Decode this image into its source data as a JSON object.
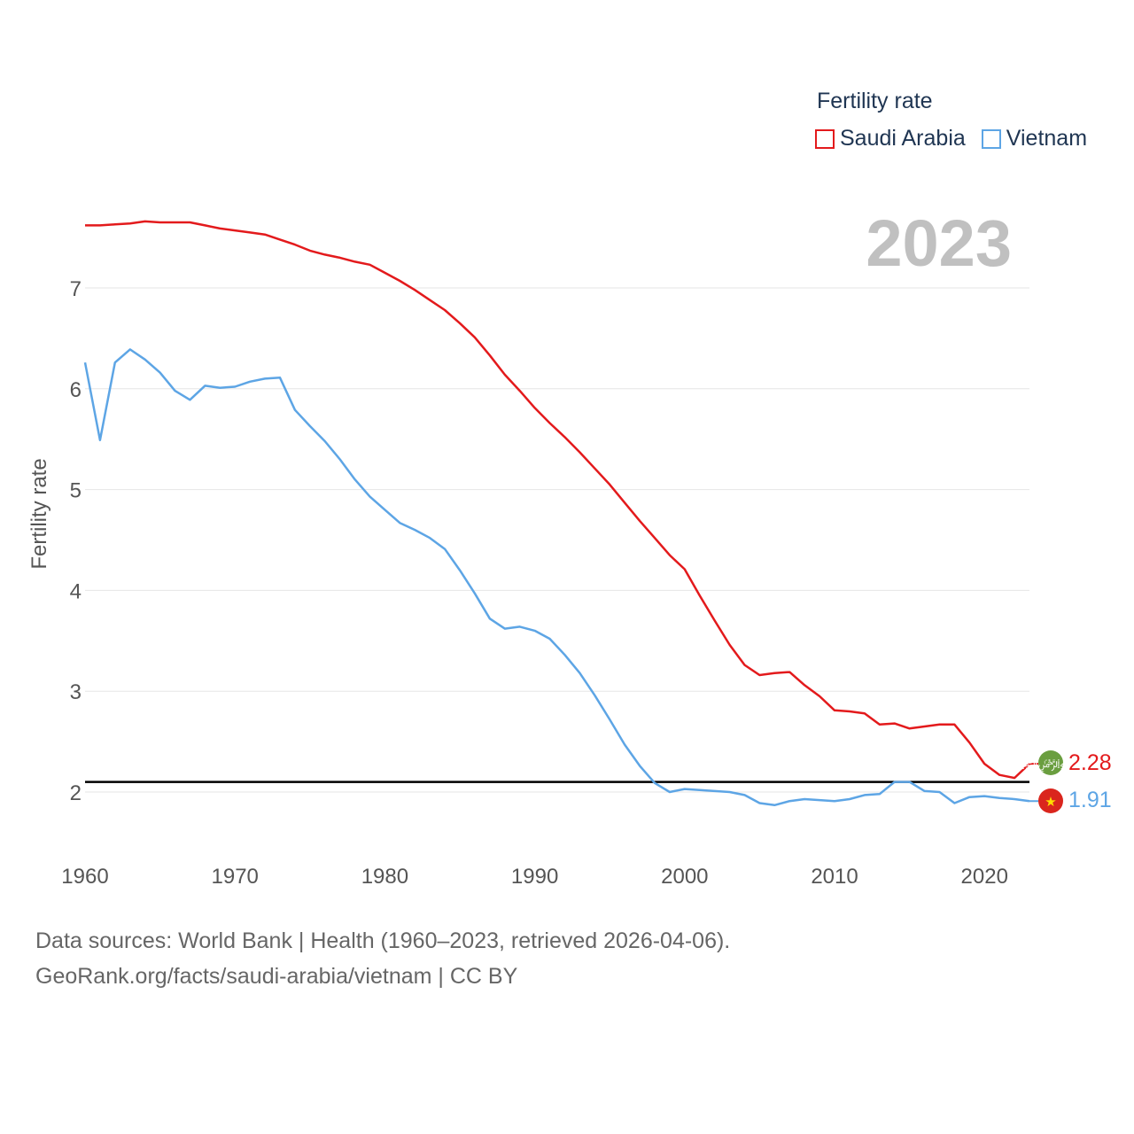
{
  "legend": {
    "title": "Fertility rate",
    "items": [
      {
        "label": "Saudi Arabia",
        "color": "#e31a1c"
      },
      {
        "label": "Vietnam",
        "color": "#5da5e5"
      }
    ]
  },
  "year_label": "2023",
  "footer": {
    "line1": "Data sources: World Bank | Health (1960–2023, retrieved 2026-04-06).",
    "line2": "GeoRank.org/facts/saudi-arabia/vietnam | CC BY"
  },
  "end_labels": {
    "saudi": "2.28",
    "vietnam": "1.91"
  },
  "icons": {
    "saudi": "saudi-arabia-flag-icon",
    "vietnam": "vietnam-flag-icon"
  },
  "chart_data": {
    "type": "line",
    "title": "",
    "xlabel": "",
    "ylabel": "Fertility rate",
    "xlim": [
      1960,
      2023
    ],
    "ylim": [
      1.4,
      7.9
    ],
    "xticks": [
      1960,
      1970,
      1980,
      1990,
      2000,
      2010,
      2020
    ],
    "yticks": [
      2,
      3,
      4,
      5,
      6,
      7
    ],
    "reference_line": 2.1,
    "x": [
      1960,
      1961,
      1962,
      1963,
      1964,
      1965,
      1966,
      1967,
      1968,
      1969,
      1970,
      1971,
      1972,
      1973,
      1974,
      1975,
      1976,
      1977,
      1978,
      1979,
      1980,
      1981,
      1982,
      1983,
      1984,
      1985,
      1986,
      1987,
      1988,
      1989,
      1990,
      1991,
      1992,
      1993,
      1994,
      1995,
      1996,
      1997,
      1998,
      1999,
      2000,
      2001,
      2002,
      2003,
      2004,
      2005,
      2006,
      2007,
      2008,
      2009,
      2010,
      2011,
      2012,
      2013,
      2014,
      2015,
      2016,
      2017,
      2018,
      2019,
      2020,
      2021,
      2022,
      2023
    ],
    "series": [
      {
        "name": "Saudi Arabia",
        "color": "#e31a1c",
        "values": [
          7.62,
          7.62,
          7.63,
          7.64,
          7.66,
          7.65,
          7.65,
          7.65,
          7.62,
          7.59,
          7.57,
          7.55,
          7.53,
          7.48,
          7.43,
          7.37,
          7.33,
          7.3,
          7.26,
          7.23,
          7.15,
          7.07,
          6.98,
          6.88,
          6.78,
          6.65,
          6.51,
          6.33,
          6.14,
          5.98,
          5.81,
          5.66,
          5.52,
          5.37,
          5.21,
          5.05,
          4.87,
          4.69,
          4.52,
          4.35,
          4.21,
          3.95,
          3.7,
          3.46,
          3.26,
          3.16,
          3.18,
          3.19,
          3.06,
          2.95,
          2.81,
          2.8,
          2.78,
          2.67,
          2.68,
          2.63,
          2.65,
          2.67,
          2.67,
          2.49,
          2.28,
          2.17,
          2.14,
          2.28
        ]
      },
      {
        "name": "Vietnam",
        "color": "#5da5e5",
        "values": [
          6.26,
          5.49,
          6.26,
          6.39,
          6.29,
          6.16,
          5.98,
          5.89,
          6.03,
          6.01,
          6.02,
          6.07,
          6.1,
          6.11,
          5.79,
          5.63,
          5.48,
          5.3,
          5.1,
          4.93,
          4.8,
          4.67,
          4.6,
          4.52,
          4.41,
          4.2,
          3.97,
          3.72,
          3.62,
          3.64,
          3.6,
          3.52,
          3.36,
          3.18,
          2.96,
          2.72,
          2.47,
          2.26,
          2.09,
          2.0,
          2.03,
          2.02,
          2.01,
          2.0,
          1.97,
          1.89,
          1.87,
          1.91,
          1.93,
          1.92,
          1.91,
          1.93,
          1.97,
          1.98,
          2.1,
          2.1,
          2.01,
          2.0,
          1.89,
          1.95,
          1.96,
          1.94,
          1.93,
          1.91
        ]
      }
    ]
  }
}
